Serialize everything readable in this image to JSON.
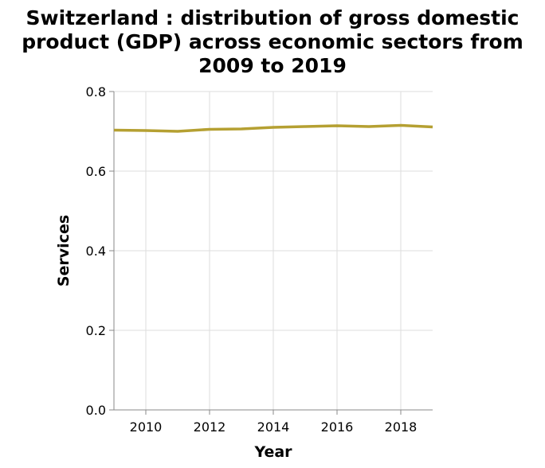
{
  "chart_data": {
    "type": "line",
    "title_lines": [
      "Switzerland : distribution of gross domestic",
      "product (GDP) across economic sectors from",
      "2009 to 2019"
    ],
    "xlabel": "Year",
    "ylabel": "Services",
    "xlim": [
      2009,
      2019
    ],
    "ylim": [
      0,
      0.8
    ],
    "x_ticks": [
      2010,
      2012,
      2014,
      2016,
      2018
    ],
    "y_ticks": [
      "0.0",
      "0.2",
      "0.4",
      "0.6",
      "0.8"
    ],
    "grid": true,
    "series": [
      {
        "color": "#b5a032",
        "x": [
          2009,
          2010,
          2011,
          2012,
          2013,
          2014,
          2015,
          2016,
          2017,
          2018,
          2019
        ],
        "y": [
          0.703,
          0.702,
          0.7,
          0.705,
          0.706,
          0.71,
          0.712,
          0.714,
          0.712,
          0.715,
          0.711
        ]
      }
    ]
  }
}
